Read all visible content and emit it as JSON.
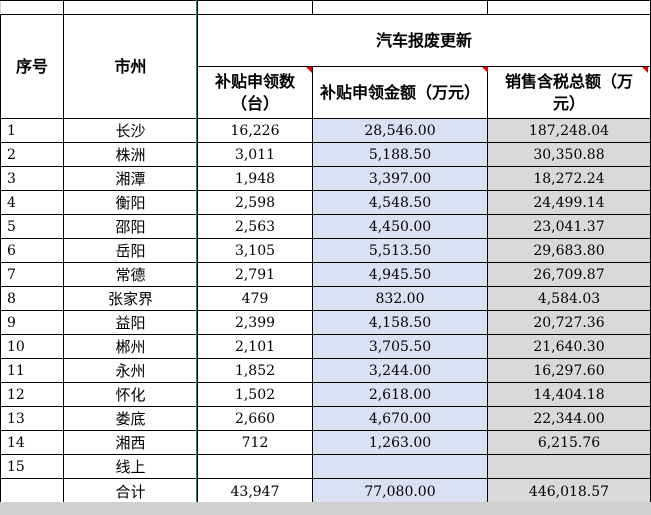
{
  "header": {
    "seq": "序号",
    "city": "市州",
    "group_title": "汽车报废更新",
    "count": "补贴申领数（台）",
    "amount": "补贴申领金额（万元）",
    "tax": "销售含税总额（万元）"
  },
  "rows": [
    {
      "seq": "1",
      "city": "长沙",
      "count": "16,226",
      "amount": "28,546.00",
      "tax": "187,248.04"
    },
    {
      "seq": "2",
      "city": "株洲",
      "count": "3,011",
      "amount": "5,188.50",
      "tax": "30,350.88"
    },
    {
      "seq": "3",
      "city": "湘潭",
      "count": "1,948",
      "amount": "3,397.00",
      "tax": "18,272.24"
    },
    {
      "seq": "4",
      "city": "衡阳",
      "count": "2,598",
      "amount": "4,548.50",
      "tax": "24,499.14"
    },
    {
      "seq": "5",
      "city": "邵阳",
      "count": "2,563",
      "amount": "4,450.00",
      "tax": "23,041.37"
    },
    {
      "seq": "6",
      "city": "岳阳",
      "count": "3,105",
      "amount": "5,513.50",
      "tax": "29,683.80"
    },
    {
      "seq": "7",
      "city": "常德",
      "count": "2,791",
      "amount": "4,945.50",
      "tax": "26,709.87"
    },
    {
      "seq": "8",
      "city": "张家界",
      "count": "479",
      "amount": "832.00",
      "tax": "4,584.03"
    },
    {
      "seq": "9",
      "city": "益阳",
      "count": "2,399",
      "amount": "4,158.50",
      "tax": "20,727.36"
    },
    {
      "seq": "10",
      "city": "郴州",
      "count": "2,101",
      "amount": "3,705.50",
      "tax": "21,640.30"
    },
    {
      "seq": "11",
      "city": "永州",
      "count": "1,852",
      "amount": "3,244.00",
      "tax": "16,297.60"
    },
    {
      "seq": "12",
      "city": "怀化",
      "count": "1,502",
      "amount": "2,618.00",
      "tax": "14,404.18"
    },
    {
      "seq": "13",
      "city": "娄底",
      "count": "2,660",
      "amount": "4,670.00",
      "tax": "22,344.00"
    },
    {
      "seq": "14",
      "city": "湘西",
      "count": "712",
      "amount": "1,263.00",
      "tax": "6,215.76"
    },
    {
      "seq": "15",
      "city": "线上",
      "count": "",
      "amount": "",
      "tax": ""
    }
  ],
  "total": {
    "label": "合计",
    "count": "43,947",
    "amount": "77,080.00",
    "tax": "446,018.57"
  },
  "colors": {
    "amount_fill": "#d9e1f2",
    "tax_fill": "#d9d9d9",
    "comment_marker": "#e00000",
    "total_border": "#2e5aa8"
  }
}
